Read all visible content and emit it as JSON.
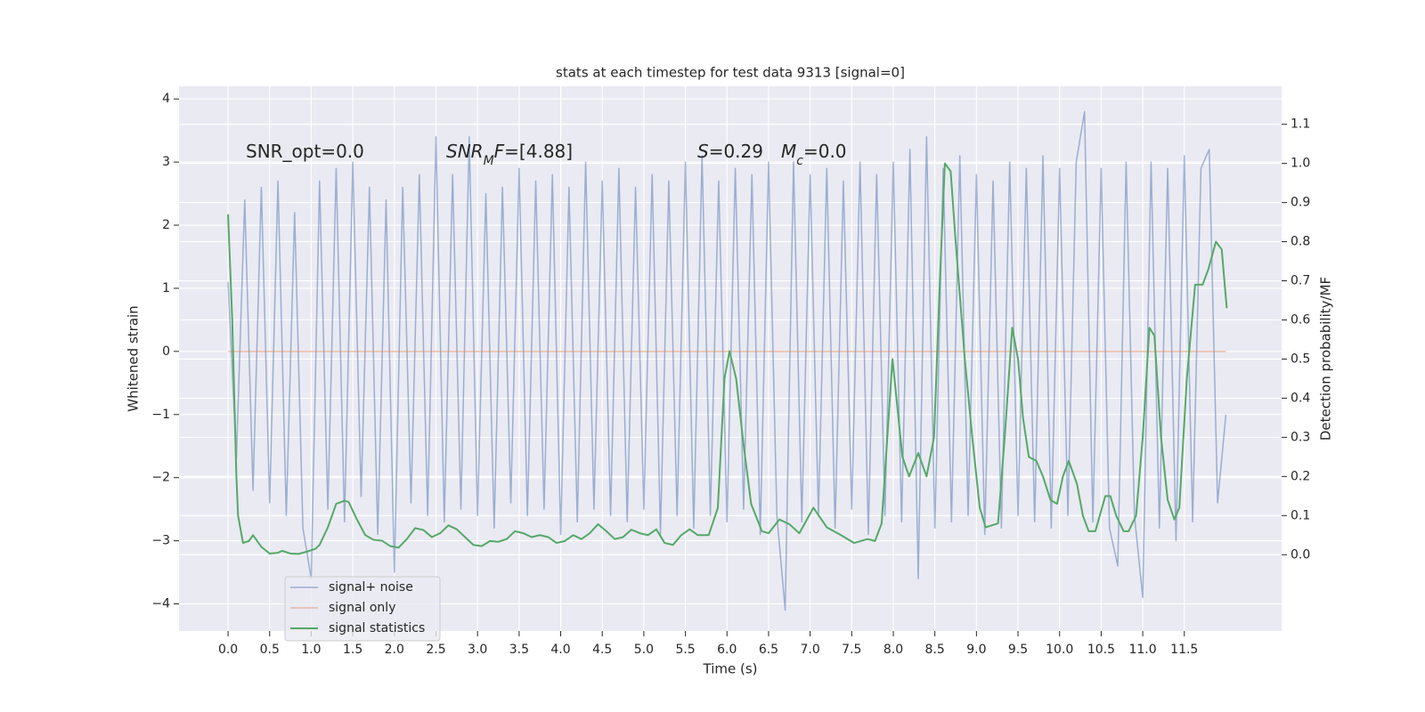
{
  "chart_data": {
    "type": "line",
    "title": "stats at each timestep for test data 9313 [signal=0]",
    "xlabel": "Time (s)",
    "ylabel": "Whitened strain",
    "y2label": "Detection probability/MF",
    "xlim": [
      -0.59,
      12.67
    ],
    "ylim": [
      -4.43,
      4.2
    ],
    "y2lim": [
      -0.195,
      1.197
    ],
    "xticks": [
      {
        "value": 0,
        "label": "0.0"
      },
      {
        "value": 0.5,
        "label": "0.5"
      },
      {
        "value": 1,
        "label": "1.0"
      },
      {
        "value": 1.5,
        "label": "1.5"
      },
      {
        "value": 2,
        "label": "2.0"
      },
      {
        "value": 2.5,
        "label": "2.5"
      },
      {
        "value": 3,
        "label": "3.0"
      },
      {
        "value": 3.5,
        "label": "3.5"
      },
      {
        "value": 4,
        "label": "4.0"
      },
      {
        "value": 4.5,
        "label": "4.5"
      },
      {
        "value": 5,
        "label": "5.0"
      },
      {
        "value": 5.5,
        "label": "5.5"
      },
      {
        "value": 6,
        "label": "6.0"
      },
      {
        "value": 6.5,
        "label": "6.5"
      },
      {
        "value": 7,
        "label": "7.0"
      },
      {
        "value": 7.5,
        "label": "7.5"
      },
      {
        "value": 8,
        "label": "8.0"
      },
      {
        "value": 8.5,
        "label": "8.5"
      },
      {
        "value": 9,
        "label": "9.0"
      },
      {
        "value": 9.5,
        "label": "9.5"
      },
      {
        "value": 10,
        "label": "10.0"
      },
      {
        "value": 10.5,
        "label": "10.5"
      },
      {
        "value": 11,
        "label": "11.0"
      },
      {
        "value": 11.5,
        "label": "11.5"
      }
    ],
    "yticks": [
      {
        "value": -4,
        "label": "−4"
      },
      {
        "value": -3,
        "label": "−3"
      },
      {
        "value": -2,
        "label": "−2"
      },
      {
        "value": -1,
        "label": "−1"
      },
      0,
      1,
      2,
      3,
      4
    ],
    "y2ticks": [
      {
        "value": 0,
        "label": "0.0"
      },
      {
        "value": 0.1,
        "label": "0.1"
      },
      {
        "value": 0.2,
        "label": "0.2"
      },
      {
        "value": 0.3,
        "label": "0.3"
      },
      {
        "value": 0.4,
        "label": "0.4"
      },
      {
        "value": 0.5,
        "label": "0.5"
      },
      {
        "value": 0.6,
        "label": "0.6"
      },
      {
        "value": 0.7,
        "label": "0.7"
      },
      {
        "value": 0.8,
        "label": "0.8"
      },
      {
        "value": 0.9,
        "label": "0.9"
      },
      {
        "value": 1,
        "label": "1.0"
      },
      {
        "value": 1.1,
        "label": "1.1"
      }
    ],
    "grid": true,
    "legend": "lower left",
    "annotations": [
      [
        {
          "text": "SNR_opt=0.0"
        }
      ],
      [
        {
          "text": "SNR",
          "italic": true
        },
        {
          "text": "M",
          "italic": true,
          "sub": true
        },
        {
          "text": "F",
          "italic": true
        },
        {
          "text": "=[4.88]"
        }
      ],
      [
        {
          "text": "S",
          "italic": true
        },
        {
          "text": "=0.29"
        }
      ],
      [
        {
          "text": "M",
          "italic": true
        },
        {
          "text": "c",
          "italic": true,
          "sub": true
        },
        {
          "text": "=0.0"
        }
      ]
    ],
    "series": [
      {
        "name": "signal+ noise",
        "color": "#4c72b0",
        "opacity": 0.5,
        "x": [
          0.0,
          0.1,
          0.2,
          0.3,
          0.4,
          0.5,
          0.6,
          0.7,
          0.8,
          0.9,
          1.0,
          1.1,
          1.2,
          1.3,
          1.4,
          1.5,
          1.6,
          1.7,
          1.8,
          1.9,
          2.0,
          2.1,
          2.2,
          2.3,
          2.4,
          2.5,
          2.6,
          2.7,
          2.8,
          2.9,
          3.0,
          3.1,
          3.2,
          3.3,
          3.4,
          3.5,
          3.6,
          3.7,
          3.8,
          3.9,
          4.0,
          4.1,
          4.2,
          4.3,
          4.4,
          4.5,
          4.6,
          4.7,
          4.8,
          4.9,
          5.0,
          5.1,
          5.2,
          5.3,
          5.4,
          5.5,
          5.6,
          5.7,
          5.8,
          5.9,
          6.0,
          6.1,
          6.2,
          6.3,
          6.4,
          6.5,
          6.6,
          6.7,
          6.8,
          6.9,
          7.0,
          7.1,
          7.2,
          7.3,
          7.4,
          7.5,
          7.6,
          7.7,
          7.8,
          7.9,
          8.0,
          8.1,
          8.2,
          8.3,
          8.4,
          8.5,
          8.6,
          8.7,
          8.8,
          8.9,
          9.0,
          9.1,
          9.2,
          9.3,
          9.4,
          9.5,
          9.6,
          9.7,
          9.8,
          9.9,
          10.0,
          10.1,
          10.2,
          10.3,
          10.4,
          10.5,
          10.6,
          10.7,
          10.8,
          10.9,
          11.0,
          11.1,
          11.2,
          11.3,
          11.4,
          11.5,
          11.6,
          11.7,
          11.8,
          11.9,
          12.0
        ],
        "values": [
          1.1,
          -1.7,
          2.4,
          -2.2,
          2.6,
          -2.4,
          2.7,
          -2.6,
          2.2,
          -2.8,
          -3.6,
          2.7,
          -2.5,
          2.9,
          -2.7,
          3.0,
          -2.3,
          2.6,
          -2.9,
          2.4,
          -3.5,
          2.6,
          -2.4,
          2.8,
          -2.6,
          3.4,
          -2.7,
          2.8,
          -2.5,
          3.4,
          -2.6,
          2.5,
          -2.8,
          2.6,
          -2.4,
          2.9,
          -2.6,
          2.7,
          -2.5,
          2.8,
          -2.9,
          2.6,
          -2.7,
          3.0,
          -2.5,
          2.7,
          -2.6,
          2.9,
          -2.7,
          2.6,
          -2.5,
          2.8,
          -2.9,
          2.7,
          -2.6,
          3.0,
          -2.8,
          3.1,
          -2.6,
          2.7,
          -2.7,
          2.9,
          -2.5,
          2.8,
          -2.9,
          3.0,
          -2.6,
          -4.1,
          3.0,
          -2.7,
          2.8,
          -2.6,
          2.9,
          -2.8,
          2.7,
          -2.5,
          3.0,
          -2.9,
          2.8,
          -2.6,
          3.0,
          -2.7,
          3.2,
          -3.6,
          3.4,
          -2.8,
          2.9,
          -2.7,
          3.1,
          -2.6,
          2.8,
          -2.9,
          2.7,
          -2.8,
          3.0,
          -2.6,
          2.9,
          -2.7,
          3.1,
          -2.8,
          2.9,
          -2.6,
          3.0,
          3.8,
          -2.7,
          2.9,
          -2.8,
          -3.4,
          3.0,
          -2.6,
          -3.9,
          3.0,
          -2.8,
          2.9,
          -3.0,
          3.1,
          -2.7,
          2.9,
          3.2,
          -2.4,
          -1.0
        ]
      },
      {
        "name": "signal only",
        "color": "#dd8452",
        "opacity": 0.5,
        "x": [
          0.0,
          12.0
        ],
        "values": [
          0,
          0
        ]
      },
      {
        "name": "signal statistics",
        "color": "#55a868",
        "opacity": 1,
        "axis": "y2",
        "x": [
          0.0,
          0.05,
          0.1,
          0.12,
          0.18,
          0.25,
          0.3,
          0.4,
          0.5,
          0.6,
          0.65,
          0.75,
          0.85,
          0.95,
          1.05,
          1.1,
          1.2,
          1.25,
          1.3,
          1.4,
          1.45,
          1.55,
          1.65,
          1.75,
          1.85,
          1.95,
          2.05,
          2.15,
          2.25,
          2.35,
          2.45,
          2.55,
          2.65,
          2.75,
          2.85,
          2.95,
          3.05,
          3.15,
          3.25,
          3.35,
          3.45,
          3.55,
          3.65,
          3.75,
          3.85,
          3.95,
          4.05,
          4.15,
          4.25,
          4.35,
          4.45,
          4.55,
          4.65,
          4.75,
          4.85,
          4.95,
          5.05,
          5.15,
          5.25,
          5.35,
          5.45,
          5.55,
          5.65,
          5.78,
          5.89,
          5.97,
          6.03,
          6.11,
          6.2,
          6.29,
          6.42,
          6.5,
          6.63,
          6.75,
          6.87,
          7.04,
          7.2,
          7.37,
          7.53,
          7.69,
          7.78,
          7.86,
          7.99,
          8.11,
          8.19,
          8.3,
          8.4,
          8.49,
          8.56,
          8.62,
          8.69,
          8.75,
          8.86,
          8.95,
          9.04,
          9.11,
          9.26,
          9.34,
          9.43,
          9.5,
          9.56,
          9.63,
          9.72,
          9.8,
          9.89,
          9.97,
          10.04,
          10.11,
          10.21,
          10.28,
          10.35,
          10.43,
          10.55,
          10.61,
          10.68,
          10.77,
          10.83,
          10.92,
          11.0,
          11.08,
          11.14,
          11.22,
          11.3,
          11.38,
          11.44,
          11.53,
          11.63,
          11.72,
          11.79,
          11.88,
          11.95,
          12.01
        ],
        "values": [
          0.87,
          0.6,
          0.2,
          0.1,
          0.03,
          0.035,
          0.05,
          0.02,
          0.003,
          0.005,
          0.01,
          0.003,
          0.002,
          0.008,
          0.015,
          0.025,
          0.07,
          0.1,
          0.13,
          0.138,
          0.135,
          0.09,
          0.05,
          0.038,
          0.036,
          0.022,
          0.018,
          0.04,
          0.068,
          0.063,
          0.045,
          0.055,
          0.075,
          0.065,
          0.045,
          0.025,
          0.022,
          0.035,
          0.033,
          0.04,
          0.06,
          0.055,
          0.045,
          0.05,
          0.045,
          0.03,
          0.035,
          0.05,
          0.04,
          0.055,
          0.078,
          0.06,
          0.04,
          0.045,
          0.064,
          0.055,
          0.05,
          0.065,
          0.03,
          0.025,
          0.05,
          0.065,
          0.05,
          0.05,
          0.12,
          0.45,
          0.52,
          0.45,
          0.28,
          0.13,
          0.06,
          0.055,
          0.09,
          0.078,
          0.055,
          0.12,
          0.07,
          0.05,
          0.03,
          0.04,
          0.035,
          0.08,
          0.5,
          0.25,
          0.2,
          0.26,
          0.2,
          0.3,
          0.7,
          1.0,
          0.98,
          0.8,
          0.5,
          0.3,
          0.12,
          0.07,
          0.08,
          0.3,
          0.58,
          0.5,
          0.35,
          0.25,
          0.24,
          0.2,
          0.14,
          0.13,
          0.2,
          0.24,
          0.18,
          0.1,
          0.06,
          0.06,
          0.15,
          0.15,
          0.1,
          0.06,
          0.06,
          0.1,
          0.3,
          0.58,
          0.56,
          0.3,
          0.14,
          0.09,
          0.12,
          0.45,
          0.69,
          0.69,
          0.73,
          0.8,
          0.78,
          0.63
        ]
      }
    ]
  }
}
